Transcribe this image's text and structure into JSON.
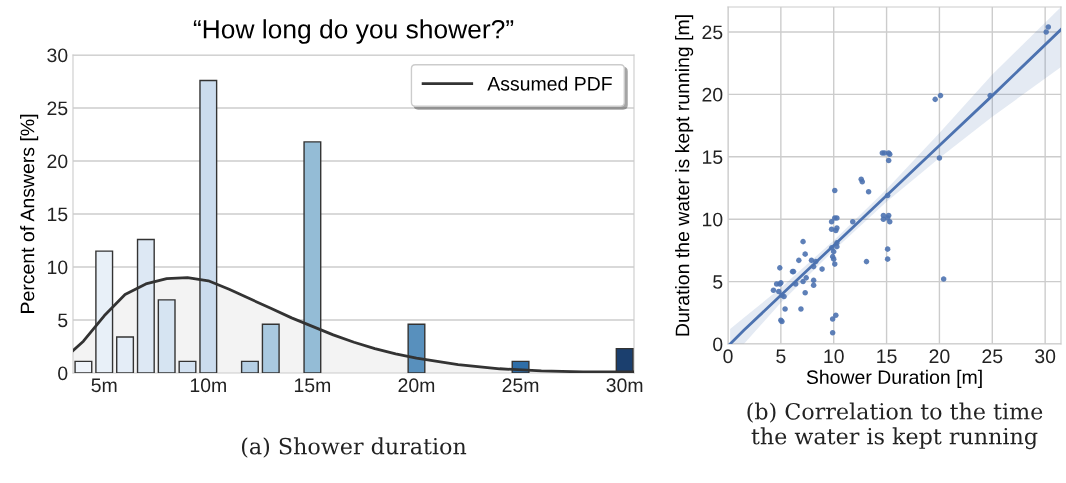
{
  "chart_data": [
    {
      "type": "bar",
      "title": "“How long do you shower?”",
      "ylabel": "Percent of Answers [%]",
      "xlim": [
        3.5,
        30.45
      ],
      "ylim": [
        0,
        30
      ],
      "xticks": [
        {
          "value": 5,
          "label": "5m"
        },
        {
          "value": 10,
          "label": "10m"
        },
        {
          "value": 15,
          "label": "15m"
        },
        {
          "value": 20,
          "label": "20m"
        },
        {
          "value": 25,
          "label": "25m"
        },
        {
          "value": 30,
          "label": "30m"
        }
      ],
      "yticks": [
        0,
        5,
        10,
        15,
        20,
        25,
        30
      ],
      "grid": "y",
      "legend": "top right",
      "annotations": [
        "(a) Shower duration"
      ],
      "series": [
        {
          "x": [
            4,
            5,
            6,
            7,
            8,
            9,
            10,
            12,
            13,
            15,
            20,
            25,
            30
          ],
          "values": [
            1.1,
            11.5,
            3.4,
            12.6,
            6.9,
            1.1,
            27.6,
            1.1,
            4.6,
            21.8,
            4.6,
            1.1,
            2.3
          ],
          "colors": [
            "#eef3fa",
            "#e8f0f8",
            "#e4edf7",
            "#dde8f4",
            "#d6e4f2",
            "#d2e1f1",
            "#cbdcee",
            "#b5cfe4",
            "#a9c9e0",
            "#94bcd6",
            "#5890bd",
            "#2f6ea8",
            "#1b3f6e"
          ]
        },
        {
          "type": "area",
          "name": "Assumed PDF",
          "color": "#333333",
          "x": [
            3.5,
            4,
            5,
            6,
            7,
            8,
            9,
            10,
            11,
            12,
            13,
            14,
            15,
            16,
            17,
            18,
            19,
            20,
            22,
            24,
            26,
            28,
            30.45
          ],
          "values": [
            2.1,
            3.0,
            5.4,
            7.4,
            8.4,
            8.9,
            9.0,
            8.7,
            7.9,
            7.0,
            6.1,
            5.2,
            4.4,
            3.6,
            2.9,
            2.3,
            1.8,
            1.4,
            0.8,
            0.4,
            0.2,
            0.1,
            0.1
          ]
        }
      ]
    },
    {
      "type": "scatter",
      "xlabel": "Shower Duration [m]",
      "ylabel": "Duration the water is kept running [m]",
      "xlim": [
        0,
        31.5
      ],
      "ylim": [
        0,
        27
      ],
      "xticks": [
        0,
        5,
        10,
        15,
        20,
        25,
        30
      ],
      "yticks": [
        0,
        5,
        10,
        15,
        20,
        25
      ],
      "grid": true,
      "annotations": [
        "(b) Correlation to the time\nthe water is kept running"
      ],
      "series": [
        {
          "color": "#4c72b0",
          "marker": "circle",
          "x": [
            4.3,
            4.6,
            4.9,
            4.9,
            4.8,
            5.0,
            5.1,
            5.0,
            5.1,
            5.4,
            5.3,
            6.1,
            6.2,
            6.4,
            6.7,
            6.9,
            7.1,
            7.1,
            7.3,
            7.3,
            7.4,
            7.9,
            8.1,
            8.1,
            8.1,
            8.3,
            8.9,
            9.8,
            9.8,
            9.8,
            9.9,
            9.9,
            9.9,
            10.0,
            10.1,
            10.1,
            10.2,
            10.1,
            10.2,
            10.3,
            10.3,
            10.3,
            10.3,
            10.0,
            11.8,
            12.6,
            12.7,
            13.1,
            13.3,
            14.6,
            14.8,
            14.7,
            14.7,
            15.1,
            15.1,
            15.1,
            15.2,
            15.2,
            15.3,
            15.2,
            15.3,
            15.1,
            19.6,
            20.1,
            20.0,
            20.4,
            24.8,
            30.1,
            30.3
          ],
          "values": [
            4.3,
            4.8,
            4.8,
            6.1,
            4.2,
            4.9,
            3.9,
            1.9,
            1.8,
            2.8,
            3.8,
            5.8,
            5.8,
            4.8,
            6.7,
            2.8,
            8.2,
            5.0,
            7.2,
            4.1,
            5.3,
            6.7,
            6.2,
            5.1,
            4.7,
            6.6,
            6.0,
            7.7,
            9.8,
            9.2,
            0.9,
            2.0,
            7.0,
            6.8,
            10.1,
            12.3,
            2.3,
            6.4,
            9.1,
            9.3,
            10.1,
            7.8,
            8.1,
            7.4,
            9.8,
            13.2,
            13.0,
            6.6,
            12.2,
            15.3,
            15.3,
            10.3,
            10.0,
            6.8,
            7.6,
            11.9,
            15.3,
            14.7,
            15.2,
            10.3,
            9.8,
            10.1,
            19.6,
            19.9,
            14.9,
            5.2,
            19.9,
            25.0,
            25.4
          ]
        },
        {
          "type": "line",
          "color": "#4c72b0",
          "x": [
            0.2,
            1.5,
            5,
            10,
            15,
            20,
            25,
            31.5
          ],
          "values": [
            0,
            1.1,
            3.9,
            7.9,
            11.9,
            15.9,
            19.9,
            25.2
          ],
          "lower": [
            0,
            0,
            3.3,
            7.5,
            11.4,
            14.9,
            18.2,
            22.2
          ],
          "upper": [
            1.2,
            2.1,
            4.5,
            8.3,
            12.4,
            16.9,
            21.6,
            27
          ]
        }
      ]
    }
  ]
}
